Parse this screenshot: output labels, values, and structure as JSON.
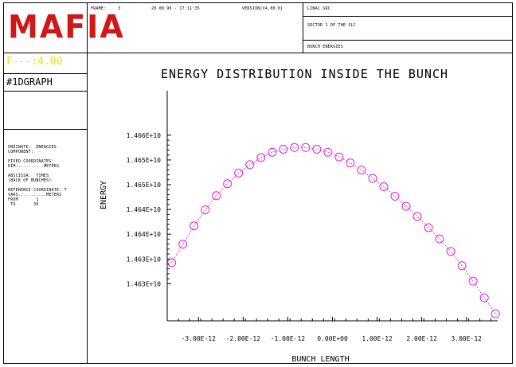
{
  "header": {
    "frame_label": "FRAME:",
    "frame_number": "3",
    "date_time": "28 08 96 - 17:11:35",
    "version": "VERSION[V4.00.0]",
    "job_file": "LINAC.SRC",
    "sector": "SECTOR 1 OF THE SLC",
    "subtitle": "BUNCH ENERGIES"
  },
  "sidebar": {
    "logo": "MAFIA",
    "parameter": "F---:4.00",
    "graph_id": "#1DGRAPH",
    "info_lines": [
      "ORDINATE:  ENERGIES",
      "COMPONENT:  -",
      "",
      "FIXED COORDINATES:",
      "DIM...........METERS",
      "",
      "ABSCISSA:  TIMES",
      "(BACK OF BUNCHES)",
      "",
      "REFERENCE COORDINATE: T",
      "VARS...........METERS",
      "FROM       1",
      " TO       30"
    ]
  },
  "chart_data": {
    "type": "scatter",
    "title": "ENERGY DISTRIBUTION INSIDE THE BUNCH",
    "xlabel": "BUNCH LENGTH",
    "ylabel": "ENERGY",
    "xlim": [
      -3.7e-12,
      3.7e-12
    ],
    "ylim": [
      14622500000.0,
      14668500000.0
    ],
    "x_ticks": [
      -3e-12,
      -2e-12,
      -1e-12,
      0,
      1e-12,
      2e-12,
      3e-12
    ],
    "x_tick_labels": [
      "-3.00E-12",
      "-2.00E-12",
      "-1.00E-12",
      "0.00E+00",
      "1.00E-12",
      "2.00E-12",
      "3.00E-12"
    ],
    "y_ticks": [
      14630000000.0,
      14635000000.0,
      14640000000.0,
      14645000000.0,
      14650000000.0,
      14655000000.0,
      14660000000.0
    ],
    "y_tick_labels": [
      "1.463E+10",
      "1.463E+10",
      "1.464E+10",
      "1.464E+10",
      "1.465E+10",
      "1.465E+10",
      "1.466E+10"
    ],
    "marker": "circle",
    "line_style": "dotted",
    "color": "#e020e0",
    "series": [
      {
        "x": [
          -3.6e-12,
          -3.35e-12,
          -3.1e-12,
          -2.85e-12,
          -2.6e-12,
          -2.35e-12,
          -2.1e-12,
          -1.85e-12,
          -1.6e-12,
          -1.35e-12,
          -1.1e-12,
          -8.5e-13,
          -6e-13,
          -3.5e-13,
          -1e-13,
          1.5e-13,
          4e-13,
          6.5e-13,
          9e-13,
          1.15e-12,
          1.4e-12,
          1.65e-12,
          1.9e-12,
          2.15e-12,
          2.4e-12,
          2.65e-12,
          2.9e-12,
          3.15e-12,
          3.4e-12,
          3.65e-12
        ],
        "y": [
          14634270000,
          14637980000,
          14641690000,
          14644920000,
          14647800000,
          14650200000,
          14652360000,
          14654040000,
          14655480000,
          14656560000,
          14657160000,
          14657520000,
          14657520000,
          14657160000,
          14656560000,
          14655600000,
          14654400000,
          14652960000,
          14651280000,
          14649600000,
          14647680000,
          14645640000,
          14643600000,
          14641320000,
          14639040000,
          14636520000,
          14633640000,
          14630520000,
          14627160000,
          14623920000
        ]
      }
    ]
  }
}
